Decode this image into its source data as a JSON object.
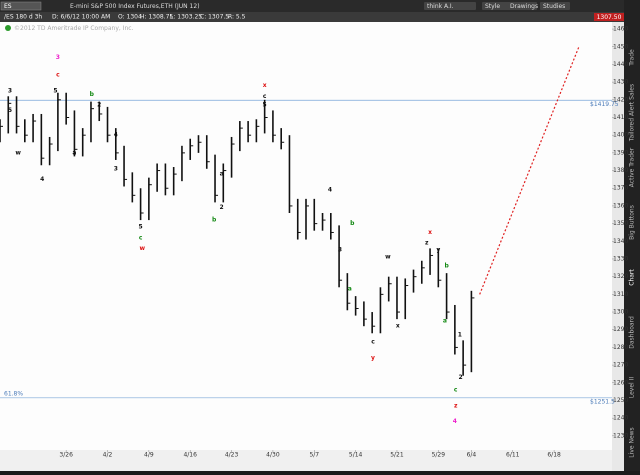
{
  "ui": {
    "symbol": "ES",
    "instrument": "E-mini S&P 500 Index Futures,ETH (JUN 12)",
    "chart_symbol": "/ES 180 d 3h",
    "date": "D: 6/6/12 10:00 AM",
    "open": "O: 1304",
    "high": "H: 1308.75",
    "low": "L: 1303.25",
    "close": "C: 1307.5",
    "range": "R: 5.5",
    "last_price": "1307.50",
    "buttons": [
      "think A.I.",
      "Style",
      "Drawings",
      "Studies"
    ],
    "copyright": "©2012 TD Ameritrade IP Company, Inc.",
    "side_tabs": [
      "Trade",
      "Tailored Alert Sales",
      "Active Trader",
      "Big Buttons",
      "Chart",
      "Dashboard",
      "Level II",
      "Live News"
    ]
  },
  "chart_data": {
    "type": "hlc",
    "x": [
      -8,
      -7,
      -6,
      -5,
      -4,
      -3,
      -2,
      -1,
      0,
      1,
      2,
      3,
      4,
      5,
      6,
      7,
      8,
      9,
      10,
      11,
      12,
      13,
      14,
      15,
      16,
      17,
      18,
      19,
      20,
      21,
      22,
      23,
      24,
      25,
      26,
      27,
      28,
      29,
      30,
      31,
      32,
      33,
      34,
      35,
      36,
      37,
      38,
      39,
      40,
      41,
      42,
      43,
      44,
      45,
      46,
      47,
      48,
      49
    ],
    "high": [
      1409,
      1422,
      1422,
      1409,
      1412,
      1412,
      1399,
      1424,
      1424,
      1414,
      1404,
      1419,
      1419,
      1416,
      1404,
      1394,
      1379,
      1370,
      1376,
      1384,
      1384,
      1382,
      1394,
      1398,
      1400,
      1400,
      1389,
      1384,
      1399,
      1408,
      1408,
      1409,
      1420,
      1414,
      1404,
      1400,
      1364,
      1364,
      1364,
      1356,
      1356,
      1349,
      1322,
      1309,
      1306,
      1300,
      1314,
      1320,
      1320,
      1319,
      1324,
      1329,
      1336,
      1336,
      1322,
      1304,
      1284,
      1312
    ],
    "low": [
      1396,
      1401,
      1401,
      1396,
      1396,
      1383,
      1383,
      1391,
      1406,
      1388,
      1388,
      1396,
      1408,
      1396,
      1386,
      1371,
      1362,
      1352,
      1352,
      1368,
      1366,
      1366,
      1374,
      1386,
      1390,
      1381,
      1362,
      1362,
      1376,
      1391,
      1396,
      1396,
      1401,
      1396,
      1392,
      1356,
      1341,
      1341,
      1346,
      1346,
      1341,
      1314,
      1301,
      1298,
      1292,
      1288,
      1288,
      1306,
      1296,
      1296,
      1311,
      1316,
      1321,
      1314,
      1296,
      1276,
      1264,
      1266
    ],
    "close": [
      1405,
      1418,
      1405,
      1400,
      1408,
      1387,
      1395,
      1420,
      1410,
      1392,
      1400,
      1415,
      1412,
      1400,
      1390,
      1375,
      1366,
      1356,
      1372,
      1380,
      1370,
      1378,
      1390,
      1394,
      1396,
      1385,
      1366,
      1380,
      1395,
      1404,
      1400,
      1405,
      1410,
      1400,
      1396,
      1360,
      1345,
      1360,
      1350,
      1352,
      1345,
      1318,
      1305,
      1302,
      1296,
      1292,
      1310,
      1316,
      1300,
      1315,
      1320,
      1325,
      1332,
      1318,
      1300,
      1280,
      1270,
      1308
    ],
    "color": "#111111",
    "xlim": [
      -8,
      66
    ],
    "ylim": [
      1222,
      1464
    ],
    "xticks": [
      {
        "value": 0,
        "label": "3/26"
      },
      {
        "value": 5,
        "label": "4/2"
      },
      {
        "value": 10,
        "label": "4/9"
      },
      {
        "value": 15,
        "label": "4/16"
      },
      {
        "value": 20,
        "label": "4/23"
      },
      {
        "value": 25,
        "label": "4/30"
      },
      {
        "value": 30,
        "label": "5/7"
      },
      {
        "value": 35,
        "label": "5/14"
      },
      {
        "value": 40,
        "label": "5/21"
      },
      {
        "value": 45,
        "label": "5/29"
      },
      {
        "value": 49,
        "label": "6/4"
      },
      {
        "value": 54,
        "label": "6/11"
      },
      {
        "value": 59,
        "label": "6/18"
      }
    ],
    "yticks": [
      1230,
      1240,
      1250,
      1260,
      1270,
      1280,
      1290,
      1300,
      1310,
      1320,
      1330,
      1340,
      1350,
      1360,
      1370,
      1380,
      1390,
      1400,
      1410,
      1420,
      1430,
      1440,
      1450,
      1460
    ],
    "grid": false,
    "levels": [
      {
        "value": 1419.75,
        "label": "$1419.75"
      },
      {
        "value": 1251.5,
        "label": "$1251.5",
        "tag": "61.8%"
      }
    ],
    "projection": {
      "x": [
        50,
        62
      ],
      "y": [
        1310,
        1450
      ],
      "color": "#e02020"
    },
    "annotations": [
      {
        "text": "3",
        "x": -1,
        "y": 1444,
        "color": "#ee22cc",
        "big": true
      },
      {
        "text": "c",
        "x": -1,
        "y": 1434,
        "color": "#dd1111"
      },
      {
        "text": "3",
        "x": -6.8,
        "y": 1425,
        "color": "#111111"
      },
      {
        "text": "5",
        "x": -1.3,
        "y": 1425,
        "color": "#111111"
      },
      {
        "text": "5",
        "x": -6.8,
        "y": 1414,
        "color": "#111111"
      },
      {
        "text": "w",
        "x": -5.8,
        "y": 1390,
        "color": "#111111"
      },
      {
        "text": "4",
        "x": -2.9,
        "y": 1375,
        "color": "#111111"
      },
      {
        "text": "a",
        "x": 1,
        "y": 1390,
        "color": "#111111"
      },
      {
        "text": "b",
        "x": 3.1,
        "y": 1423,
        "color": "#118811"
      },
      {
        "text": "2",
        "x": 4,
        "y": 1417,
        "color": "#111111"
      },
      {
        "text": "4",
        "x": 6,
        "y": 1400,
        "color": "#111111"
      },
      {
        "text": "3",
        "x": 6,
        "y": 1381,
        "color": "#111111"
      },
      {
        "text": "5",
        "x": 9,
        "y": 1348,
        "color": "#111111"
      },
      {
        "text": "c",
        "x": 9,
        "y": 1342,
        "color": "#118811"
      },
      {
        "text": "w",
        "x": 9.2,
        "y": 1336,
        "color": "#dd1111"
      },
      {
        "text": "a",
        "x": 18.8,
        "y": 1378,
        "color": "#111111"
      },
      {
        "text": "2",
        "x": 18.8,
        "y": 1359,
        "color": "#111111"
      },
      {
        "text": "b",
        "x": 17.9,
        "y": 1352,
        "color": "#118811"
      },
      {
        "text": "x",
        "x": 24,
        "y": 1428,
        "color": "#dd1111"
      },
      {
        "text": "c",
        "x": 24,
        "y": 1422,
        "color": "#111111"
      },
      {
        "text": "5",
        "x": 24,
        "y": 1417,
        "color": "#111111"
      },
      {
        "text": "4",
        "x": 31.9,
        "y": 1369,
        "color": "#111111"
      },
      {
        "text": "3",
        "x": 33.1,
        "y": 1335,
        "color": "#111111"
      },
      {
        "text": "b",
        "x": 34.6,
        "y": 1350,
        "color": "#118811"
      },
      {
        "text": "a",
        "x": 34.3,
        "y": 1313,
        "color": "#118811"
      },
      {
        "text": "c",
        "x": 37.1,
        "y": 1283,
        "color": "#111111"
      },
      {
        "text": "y",
        "x": 37.1,
        "y": 1274,
        "color": "#dd1111"
      },
      {
        "text": "w",
        "x": 38.9,
        "y": 1331,
        "color": "#111111"
      },
      {
        "text": "x",
        "x": 40.1,
        "y": 1292,
        "color": "#111111"
      },
      {
        "text": "x",
        "x": 44,
        "y": 1345,
        "color": "#dd1111"
      },
      {
        "text": "z",
        "x": 43.6,
        "y": 1339,
        "color": "#111111"
      },
      {
        "text": "y",
        "x": 45,
        "y": 1335,
        "color": "#111111"
      },
      {
        "text": "b",
        "x": 46,
        "y": 1326,
        "color": "#118811"
      },
      {
        "text": "a",
        "x": 45.8,
        "y": 1295,
        "color": "#118811"
      },
      {
        "text": "1",
        "x": 47.6,
        "y": 1287,
        "color": "#111111"
      },
      {
        "text": "2",
        "x": 47.7,
        "y": 1263,
        "color": "#111111"
      },
      {
        "text": "c",
        "x": 47.1,
        "y": 1256,
        "color": "#118811"
      },
      {
        "text": "z",
        "x": 47.1,
        "y": 1247,
        "color": "#dd1111"
      },
      {
        "text": "4",
        "x": 47,
        "y": 1238,
        "color": "#ee22cc",
        "big": true
      }
    ]
  }
}
